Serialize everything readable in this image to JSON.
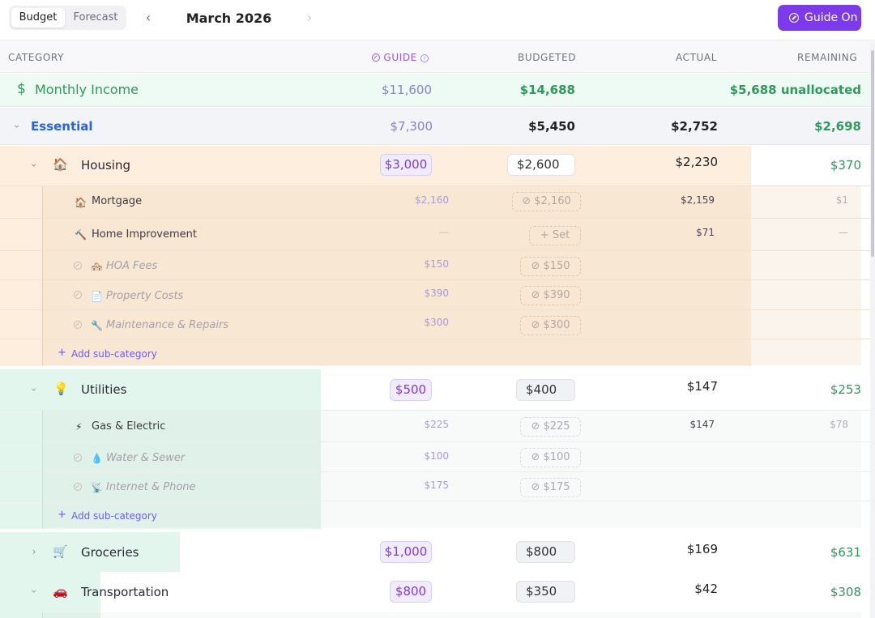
{
  "tabs": {
    "budget": "Budget",
    "forecast": "Forecast"
  },
  "nav": {
    "prev": "‹",
    "next": "›",
    "month": "March 2026"
  },
  "guide_button": {
    "label": "Guide On"
  },
  "columns": {
    "category": "CATEGORY",
    "guide": "GUIDE",
    "budgeted": "BUDGETED",
    "actual": "ACTUAL",
    "remaining": "REMAINING"
  },
  "income": {
    "icon": "$",
    "label": "Monthly Income",
    "guide": "$11,600",
    "budgeted": "$14,688",
    "remaining": "$5,688 unallocated"
  },
  "essential": {
    "label": "Essential",
    "guide": "$7,300",
    "budgeted": "$5,450",
    "actual": "$2,752",
    "remaining": "$2,698"
  },
  "housing": {
    "emoji": "🏠",
    "label": "Housing",
    "guide": "$3,000",
    "budgeted": "$2,600",
    "actual": "$2,230",
    "remaining": "$370",
    "subs": [
      {
        "emoji": "🏠",
        "label": "Mortgage",
        "guide": "$2,160",
        "budgeted": "$2,160",
        "actual": "$2,159",
        "remaining": "$1"
      },
      {
        "emoji": "🔨",
        "label": "Home Improvement",
        "guide": "—",
        "budgeted": "Set",
        "actual": "$71",
        "remaining": "—"
      },
      {
        "emoji": "🏘️",
        "label": "HOA Fees",
        "guide": "$150",
        "budgeted": "$150"
      },
      {
        "emoji": "📄",
        "label": "Property Costs",
        "guide": "$390",
        "budgeted": "$390"
      },
      {
        "emoji": "🔧",
        "label": "Maintenance & Repairs",
        "guide": "$300",
        "budgeted": "$300"
      }
    ],
    "add": "Add sub-category"
  },
  "utilities": {
    "emoji": "💡",
    "label": "Utilities",
    "guide": "$500",
    "budgeted": "$400",
    "actual": "$147",
    "remaining": "$253",
    "subs": [
      {
        "emoji": "⚡",
        "label": "Gas & Electric",
        "guide": "$225",
        "budgeted": "$225",
        "actual": "$147",
        "remaining": "$78"
      },
      {
        "emoji": "💧",
        "label": "Water & Sewer",
        "guide": "$100",
        "budgeted": "$100"
      },
      {
        "emoji": "📡",
        "label": "Internet & Phone",
        "guide": "$175",
        "budgeted": "$175"
      }
    ],
    "add": "Add sub-category"
  },
  "groceries": {
    "emoji": "🛒",
    "label": "Groceries",
    "guide": "$1,000",
    "budgeted": "$800",
    "actual": "$169",
    "remaining": "$631"
  },
  "transportation": {
    "emoji": "🚗",
    "label": "Transportation",
    "guide": "$800",
    "budgeted": "$350",
    "actual": "$42",
    "remaining": "$308"
  },
  "colors": {
    "accent": "#7c3aed",
    "positive": "#2e9a5c",
    "essential_blue": "#2563eb",
    "housing_fill": "#fdeedd",
    "utilities_fill": "#e3f6ee"
  },
  "icons": [
    "chevron-left-icon",
    "chevron-right-icon",
    "guide-icon",
    "info-icon",
    "dollar-icon",
    "chevron-down-icon",
    "chevron-right-icon",
    "plus-icon"
  ]
}
